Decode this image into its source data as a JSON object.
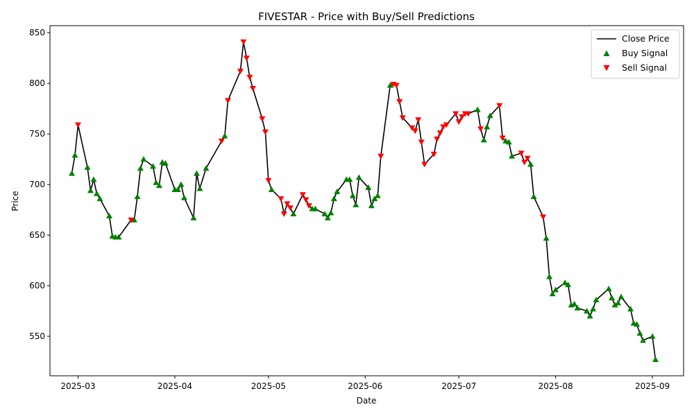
{
  "chart_data": {
    "type": "line",
    "title": "FIVESTAR - Price with Buy/Sell Predictions",
    "xlabel": "Date",
    "ylabel": "Price",
    "x_range": [
      "2025-02-20",
      "2025-09-11"
    ],
    "ylim": [
      511,
      857
    ],
    "x_ticks": [
      "2025-03",
      "2025-04",
      "2025-05",
      "2025-06",
      "2025-07",
      "2025-08",
      "2025-09"
    ],
    "y_ticks": [
      550,
      600,
      650,
      700,
      750,
      800,
      850
    ],
    "grid": false,
    "legend_position": "top-right",
    "colors": {
      "line": "#000000",
      "buy": "#008000",
      "sell": "#ff0000"
    },
    "series": [
      {
        "name": "Close Price",
        "kind": "line",
        "points": [
          [
            "2025-02-27",
            711
          ],
          [
            "2025-02-28",
            729
          ],
          [
            "2025-03-01",
            759
          ],
          [
            "2025-03-04",
            717
          ],
          [
            "2025-03-05",
            694
          ],
          [
            "2025-03-06",
            705
          ],
          [
            "2025-03-07",
            691
          ],
          [
            "2025-03-08",
            686
          ],
          [
            "2025-03-11",
            669
          ],
          [
            "2025-03-12",
            649
          ],
          [
            "2025-03-13",
            648
          ],
          [
            "2025-03-14",
            648
          ],
          [
            "2025-03-18",
            665
          ],
          [
            "2025-03-19",
            665
          ],
          [
            "2025-03-20",
            688
          ],
          [
            "2025-03-21",
            716
          ],
          [
            "2025-03-22",
            725
          ],
          [
            "2025-03-25",
            718
          ],
          [
            "2025-03-26",
            702
          ],
          [
            "2025-03-27",
            699
          ],
          [
            "2025-03-28",
            722
          ],
          [
            "2025-03-29",
            721
          ],
          [
            "2025-04-01",
            695
          ],
          [
            "2025-04-02",
            695
          ],
          [
            "2025-04-03",
            700
          ],
          [
            "2025-04-04",
            687
          ],
          [
            "2025-04-07",
            667
          ],
          [
            "2025-04-08",
            711
          ],
          [
            "2025-04-09",
            696
          ],
          [
            "2025-04-11",
            716
          ],
          [
            "2025-04-16",
            743
          ],
          [
            "2025-04-17",
            748
          ],
          [
            "2025-04-18",
            783
          ],
          [
            "2025-04-22",
            812
          ],
          [
            "2025-04-23",
            841
          ],
          [
            "2025-04-24",
            825
          ],
          [
            "2025-04-25",
            806
          ],
          [
            "2025-04-26",
            795
          ],
          [
            "2025-04-29",
            765
          ],
          [
            "2025-04-30",
            752
          ],
          [
            "2025-05-01",
            704
          ],
          [
            "2025-05-02",
            695
          ],
          [
            "2025-05-05",
            686
          ],
          [
            "2025-05-06",
            671
          ],
          [
            "2025-05-07",
            681
          ],
          [
            "2025-05-08",
            677
          ],
          [
            "2025-05-09",
            671
          ],
          [
            "2025-05-12",
            690
          ],
          [
            "2025-05-13",
            685
          ],
          [
            "2025-05-14",
            679
          ],
          [
            "2025-05-15",
            676
          ],
          [
            "2025-05-16",
            676
          ],
          [
            "2025-05-19",
            671
          ],
          [
            "2025-05-20",
            667
          ],
          [
            "2025-05-21",
            672
          ],
          [
            "2025-05-22",
            686
          ],
          [
            "2025-05-23",
            693
          ],
          [
            "2025-05-26",
            705
          ],
          [
            "2025-05-27",
            705
          ],
          [
            "2025-05-28",
            689
          ],
          [
            "2025-05-29",
            680
          ],
          [
            "2025-05-30",
            707
          ],
          [
            "2025-06-02",
            697
          ],
          [
            "2025-06-03",
            679
          ],
          [
            "2025-06-04",
            686
          ],
          [
            "2025-06-05",
            689
          ],
          [
            "2025-06-06",
            728
          ],
          [
            "2025-06-09",
            798
          ],
          [
            "2025-06-10",
            799
          ],
          [
            "2025-06-11",
            798
          ],
          [
            "2025-06-12",
            782
          ],
          [
            "2025-06-13",
            766
          ],
          [
            "2025-06-16",
            756
          ],
          [
            "2025-06-17",
            753
          ],
          [
            "2025-06-18",
            764
          ],
          [
            "2025-06-19",
            742
          ],
          [
            "2025-06-20",
            720
          ],
          [
            "2025-06-23",
            730
          ],
          [
            "2025-06-24",
            745
          ],
          [
            "2025-06-25",
            751
          ],
          [
            "2025-06-26",
            757
          ],
          [
            "2025-06-27",
            759
          ],
          [
            "2025-06-30",
            770
          ],
          [
            "2025-07-01",
            762
          ],
          [
            "2025-07-02",
            767
          ],
          [
            "2025-07-03",
            770
          ],
          [
            "2025-07-04",
            770
          ],
          [
            "2025-07-07",
            774
          ],
          [
            "2025-07-08",
            755
          ],
          [
            "2025-07-09",
            744
          ],
          [
            "2025-07-10",
            757
          ],
          [
            "2025-07-11",
            768
          ],
          [
            "2025-07-14",
            778
          ],
          [
            "2025-07-15",
            746
          ],
          [
            "2025-07-16",
            743
          ],
          [
            "2025-07-17",
            742
          ],
          [
            "2025-07-18",
            728
          ],
          [
            "2025-07-21",
            731
          ],
          [
            "2025-07-22",
            722
          ],
          [
            "2025-07-23",
            726
          ],
          [
            "2025-07-24",
            720
          ],
          [
            "2025-07-25",
            688
          ],
          [
            "2025-07-28",
            668
          ],
          [
            "2025-07-29",
            647
          ],
          [
            "2025-07-30",
            609
          ],
          [
            "2025-07-31",
            592
          ],
          [
            "2025-08-01",
            596
          ],
          [
            "2025-08-04",
            603
          ],
          [
            "2025-08-05",
            601
          ],
          [
            "2025-08-06",
            581
          ],
          [
            "2025-08-07",
            582
          ],
          [
            "2025-08-08",
            578
          ],
          [
            "2025-08-11",
            575
          ],
          [
            "2025-08-12",
            570
          ],
          [
            "2025-08-13",
            577
          ],
          [
            "2025-08-14",
            586
          ],
          [
            "2025-08-18",
            597
          ],
          [
            "2025-08-19",
            588
          ],
          [
            "2025-08-20",
            581
          ],
          [
            "2025-08-21",
            583
          ],
          [
            "2025-08-22",
            589
          ],
          [
            "2025-08-25",
            577
          ],
          [
            "2025-08-26",
            563
          ],
          [
            "2025-08-27",
            562
          ],
          [
            "2025-08-28",
            553
          ],
          [
            "2025-08-29",
            546
          ],
          [
            "2025-09-01",
            550
          ],
          [
            "2025-09-02",
            527
          ]
        ]
      },
      {
        "name": "Buy Signal",
        "kind": "marker",
        "marker": "triangle-up",
        "points": [
          [
            "2025-02-27",
            711
          ],
          [
            "2025-02-28",
            729
          ],
          [
            "2025-03-04",
            717
          ],
          [
            "2025-03-05",
            694
          ],
          [
            "2025-03-06",
            705
          ],
          [
            "2025-03-07",
            691
          ],
          [
            "2025-03-08",
            686
          ],
          [
            "2025-03-11",
            669
          ],
          [
            "2025-03-12",
            649
          ],
          [
            "2025-03-13",
            648
          ],
          [
            "2025-03-14",
            648
          ],
          [
            "2025-03-19",
            665
          ],
          [
            "2025-03-20",
            688
          ],
          [
            "2025-03-21",
            716
          ],
          [
            "2025-03-22",
            725
          ],
          [
            "2025-03-25",
            718
          ],
          [
            "2025-03-26",
            702
          ],
          [
            "2025-03-27",
            699
          ],
          [
            "2025-03-28",
            722
          ],
          [
            "2025-03-29",
            721
          ],
          [
            "2025-04-01",
            695
          ],
          [
            "2025-04-02",
            695
          ],
          [
            "2025-04-03",
            700
          ],
          [
            "2025-04-04",
            687
          ],
          [
            "2025-04-07",
            667
          ],
          [
            "2025-04-08",
            711
          ],
          [
            "2025-04-09",
            696
          ],
          [
            "2025-04-11",
            716
          ],
          [
            "2025-04-17",
            748
          ],
          [
            "2025-05-02",
            695
          ],
          [
            "2025-05-09",
            671
          ],
          [
            "2025-05-15",
            676
          ],
          [
            "2025-05-16",
            676
          ],
          [
            "2025-05-19",
            671
          ],
          [
            "2025-05-20",
            667
          ],
          [
            "2025-05-21",
            672
          ],
          [
            "2025-05-22",
            686
          ],
          [
            "2025-05-23",
            693
          ],
          [
            "2025-05-26",
            705
          ],
          [
            "2025-05-27",
            705
          ],
          [
            "2025-05-28",
            689
          ],
          [
            "2025-05-29",
            680
          ],
          [
            "2025-05-30",
            707
          ],
          [
            "2025-06-02",
            697
          ],
          [
            "2025-06-03",
            679
          ],
          [
            "2025-06-04",
            686
          ],
          [
            "2025-06-05",
            689
          ],
          [
            "2025-06-09",
            798
          ],
          [
            "2025-07-07",
            774
          ],
          [
            "2025-07-09",
            744
          ],
          [
            "2025-07-10",
            757
          ],
          [
            "2025-07-11",
            768
          ],
          [
            "2025-07-16",
            743
          ],
          [
            "2025-07-17",
            742
          ],
          [
            "2025-07-18",
            728
          ],
          [
            "2025-07-24",
            720
          ],
          [
            "2025-07-25",
            688
          ],
          [
            "2025-07-29",
            647
          ],
          [
            "2025-07-30",
            609
          ],
          [
            "2025-07-31",
            592
          ],
          [
            "2025-08-01",
            596
          ],
          [
            "2025-08-04",
            603
          ],
          [
            "2025-08-05",
            601
          ],
          [
            "2025-08-06",
            581
          ],
          [
            "2025-08-07",
            582
          ],
          [
            "2025-08-08",
            578
          ],
          [
            "2025-08-11",
            575
          ],
          [
            "2025-08-12",
            570
          ],
          [
            "2025-08-13",
            577
          ],
          [
            "2025-08-14",
            586
          ],
          [
            "2025-08-18",
            597
          ],
          [
            "2025-08-19",
            588
          ],
          [
            "2025-08-20",
            581
          ],
          [
            "2025-08-21",
            583
          ],
          [
            "2025-08-22",
            589
          ],
          [
            "2025-08-25",
            577
          ],
          [
            "2025-08-26",
            563
          ],
          [
            "2025-08-27",
            562
          ],
          [
            "2025-08-28",
            553
          ],
          [
            "2025-08-29",
            546
          ],
          [
            "2025-09-01",
            550
          ],
          [
            "2025-09-02",
            527
          ]
        ]
      },
      {
        "name": "Sell Signal",
        "kind": "marker",
        "marker": "triangle-down",
        "points": [
          [
            "2025-03-01",
            759
          ],
          [
            "2025-03-18",
            665
          ],
          [
            "2025-04-16",
            743
          ],
          [
            "2025-04-18",
            783
          ],
          [
            "2025-04-22",
            812
          ],
          [
            "2025-04-23",
            841
          ],
          [
            "2025-04-24",
            825
          ],
          [
            "2025-04-25",
            806
          ],
          [
            "2025-04-26",
            795
          ],
          [
            "2025-04-29",
            765
          ],
          [
            "2025-04-30",
            752
          ],
          [
            "2025-05-01",
            704
          ],
          [
            "2025-05-05",
            686
          ],
          [
            "2025-05-06",
            671
          ],
          [
            "2025-05-07",
            681
          ],
          [
            "2025-05-08",
            677
          ],
          [
            "2025-05-12",
            690
          ],
          [
            "2025-05-13",
            685
          ],
          [
            "2025-05-14",
            679
          ],
          [
            "2025-06-06",
            728
          ],
          [
            "2025-06-10",
            799
          ],
          [
            "2025-06-11",
            798
          ],
          [
            "2025-06-12",
            782
          ],
          [
            "2025-06-13",
            766
          ],
          [
            "2025-06-16",
            756
          ],
          [
            "2025-06-17",
            753
          ],
          [
            "2025-06-18",
            764
          ],
          [
            "2025-06-19",
            742
          ],
          [
            "2025-06-20",
            720
          ],
          [
            "2025-06-23",
            730
          ],
          [
            "2025-06-24",
            745
          ],
          [
            "2025-06-25",
            751
          ],
          [
            "2025-06-26",
            757
          ],
          [
            "2025-06-27",
            759
          ],
          [
            "2025-06-30",
            770
          ],
          [
            "2025-07-01",
            762
          ],
          [
            "2025-07-02",
            767
          ],
          [
            "2025-07-03",
            770
          ],
          [
            "2025-07-04",
            770
          ],
          [
            "2025-07-08",
            755
          ],
          [
            "2025-07-14",
            778
          ],
          [
            "2025-07-15",
            746
          ],
          [
            "2025-07-21",
            731
          ],
          [
            "2025-07-22",
            722
          ],
          [
            "2025-07-23",
            726
          ],
          [
            "2025-07-28",
            668
          ]
        ]
      }
    ]
  }
}
